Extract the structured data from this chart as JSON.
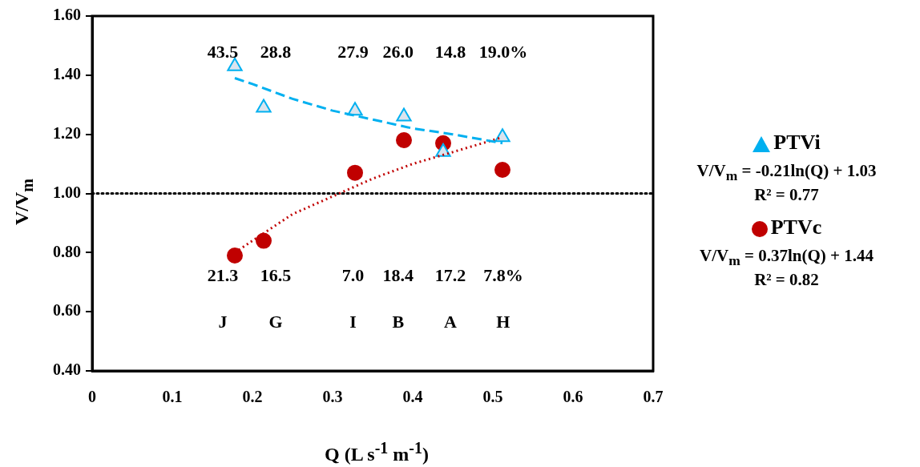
{
  "chart_data": {
    "type": "scatter",
    "xlabel": "Q (L s$^{-1}$ m$^{-1}$)",
    "ylabel": "V/V$_{m}$",
    "xlim": [
      0,
      0.7
    ],
    "xticks": [
      0,
      0.1,
      0.2,
      0.3,
      0.4,
      0.5,
      0.6,
      0.7
    ],
    "ylim": [
      0.4,
      1.6
    ],
    "yticks": [
      {
        "value": 0.4,
        "label": "0.40"
      },
      {
        "value": 0.6,
        "label": "0.60"
      },
      {
        "value": 0.8,
        "label": "0.80"
      },
      {
        "value": 1.0,
        "label": "1.00"
      },
      {
        "value": 1.2,
        "label": "1.20"
      },
      {
        "value": 1.4,
        "label": "1.40"
      },
      {
        "value": 1.6,
        "label": "1.60"
      }
    ],
    "grid": false,
    "legend": "right",
    "series": [
      {
        "name": "PTVi",
        "type": "scatter",
        "marker": "triangle",
        "color": "#00b0f0",
        "x": [
          0.178,
          0.214,
          0.328,
          0.389,
          0.438,
          0.512
        ],
        "values": [
          1.43,
          1.29,
          1.28,
          1.26,
          1.14,
          1.19
        ]
      },
      {
        "type": "line",
        "marker": "none",
        "line_style": "dashed",
        "color": "#00b0f0",
        "x": [
          0.178,
          0.2,
          0.25,
          0.3,
          0.35,
          0.4,
          0.45,
          0.512
        ],
        "values": [
          1.39,
          1.37,
          1.32,
          1.28,
          1.25,
          1.22,
          1.2,
          1.17
        ]
      },
      {
        "name": "PTVc",
        "type": "scatter",
        "marker": "circle",
        "color": "#c00000",
        "x": [
          0.178,
          0.214,
          0.328,
          0.389,
          0.438,
          0.512
        ],
        "values": [
          0.79,
          0.84,
          1.07,
          1.18,
          1.17,
          1.08
        ]
      },
      {
        "type": "line",
        "marker": "none",
        "line_style": "dotted",
        "color": "#c00000",
        "x": [
          0.178,
          0.2,
          0.25,
          0.3,
          0.35,
          0.4,
          0.45,
          0.512
        ],
        "values": [
          0.8,
          0.84,
          0.93,
          0.99,
          1.05,
          1.1,
          1.14,
          1.19
        ]
      }
    ],
    "ref_lines": [
      {
        "axis": "y",
        "value": 1.0,
        "color": "#000000",
        "line_style": "dotted"
      }
    ],
    "annotations": [
      "V/V$_{m}$ = -0.21ln(Q) + 1.03\nR² = 0.77",
      "V/V$_{m}$ = 0.37ln(Q) + 1.44\nR² = 0.82",
      "43.5",
      "28.8",
      "27.9",
      "26.0",
      "14.8",
      "19.0%",
      "21.3",
      "16.5",
      "7.0",
      "18.4",
      "17.2",
      "7.8%",
      "J",
      "G",
      "I",
      "B",
      "A",
      "H"
    ]
  }
}
